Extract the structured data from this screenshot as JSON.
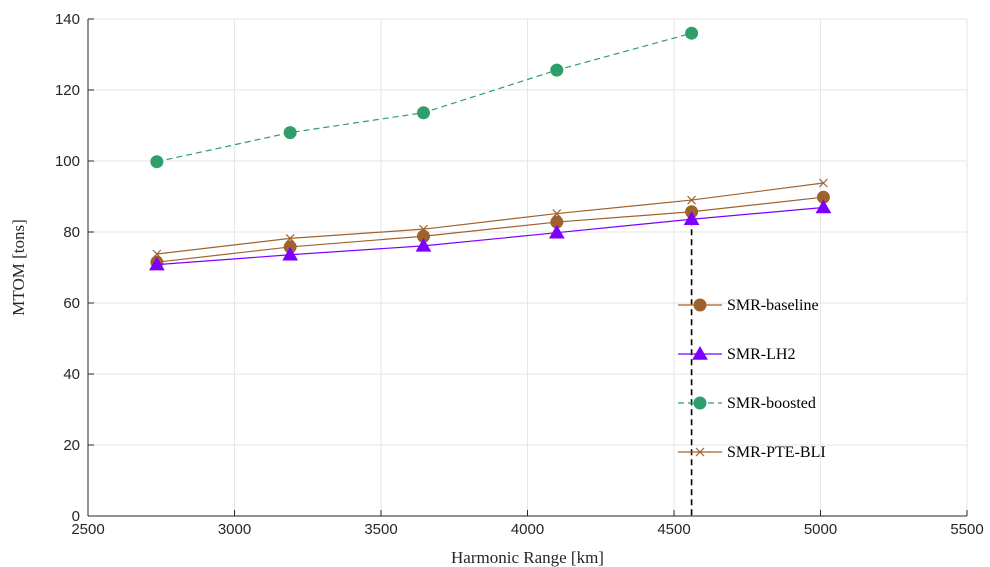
{
  "chart_data": {
    "type": "line",
    "title": "",
    "xlabel": "Harmonic Range [km]",
    "ylabel": "MTOM [tons]",
    "xlim": [
      2500,
      5500
    ],
    "ylim": [
      0,
      140
    ],
    "xticks": [
      "2500",
      "3000",
      "3500",
      "4000",
      "4500",
      "5000",
      "5500"
    ],
    "yticks": [
      "0",
      "20",
      "40",
      "60",
      "80",
      "100",
      "120",
      "140"
    ],
    "grid": true,
    "legend_position": "right",
    "series": [
      {
        "name": "SMR-baseline",
        "x": [
          2735,
          3190,
          3645,
          4100,
          4560,
          5010
        ],
        "y": [
          71.5,
          75.8,
          78.8,
          82.8,
          85.7,
          89.8
        ],
        "color": "#A0622D",
        "marker": "circle",
        "line": "solid"
      },
      {
        "name": "SMR-LH2",
        "x": [
          2735,
          3190,
          3645,
          4100,
          4560,
          5010
        ],
        "y": [
          70.8,
          73.6,
          76.1,
          79.8,
          83.6,
          86.9
        ],
        "color": "#7B00FF",
        "marker": "triangle",
        "line": "solid"
      },
      {
        "name": "SMR-boosted",
        "x": [
          2735,
          3190,
          3645,
          4100,
          4560
        ],
        "y": [
          99.8,
          108.0,
          113.6,
          125.6,
          136.0
        ],
        "color": "#2E9E6A",
        "marker": "circle",
        "line": "dashed"
      },
      {
        "name": "SMR-PTE-BLI",
        "x": [
          2735,
          3190,
          3645,
          4100,
          4560,
          5010
        ],
        "y": [
          73.8,
          78.2,
          80.8,
          85.2,
          89.0,
          93.8
        ],
        "color": "#A0622D",
        "marker": "x",
        "line": "solid"
      }
    ],
    "reference_line": {
      "x": 4560,
      "style": "dashed",
      "color": "#000000"
    }
  }
}
